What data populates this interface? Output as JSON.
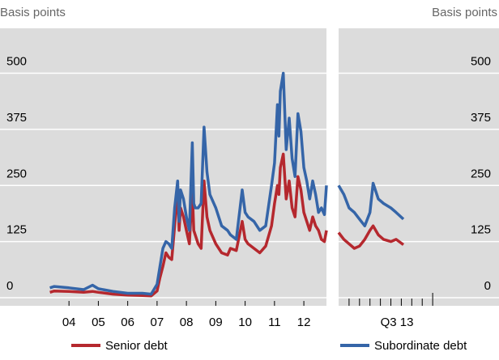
{
  "chart_data": [
    {
      "type": "line",
      "ylabel": "Basis points",
      "x": [
        3.85,
        4.0,
        4.5,
        5.0,
        5.3,
        5.5,
        6.0,
        6.5,
        7.0,
        7.3,
        7.5,
        7.6,
        7.7,
        7.8,
        7.9,
        8.0,
        8.1,
        8.2,
        8.25,
        8.3,
        8.4,
        8.5,
        8.6,
        8.7,
        8.75,
        8.8,
        8.9,
        9.0,
        9.1,
        9.2,
        9.3,
        9.5,
        9.7,
        9.9,
        10.0,
        10.2,
        10.4,
        10.5,
        10.6,
        10.8,
        11.0,
        11.2,
        11.4,
        11.5,
        11.6,
        11.65,
        11.7,
        11.8,
        11.9,
        12.0,
        12.1,
        12.2,
        12.3,
        12.4,
        12.5,
        12.6,
        12.7,
        12.8,
        12.9,
        13.0,
        13.1,
        13.2,
        13.27
      ],
      "series": [
        {
          "name": "Senior debt",
          "color": "#b5282e",
          "values": [
            12,
            15,
            14,
            12,
            14,
            12,
            8,
            6,
            5,
            4,
            15,
            45,
            70,
            100,
            90,
            85,
            160,
            240,
            150,
            200,
            180,
            150,
            120,
            240,
            150,
            140,
            120,
            110,
            260,
            180,
            150,
            120,
            100,
            95,
            110,
            105,
            170,
            130,
            120,
            110,
            100,
            115,
            160,
            210,
            250,
            230,
            290,
            320,
            220,
            260,
            200,
            180,
            270,
            240,
            190,
            170,
            150,
            180,
            160,
            150,
            130,
            125,
            150
          ]
        },
        {
          "name": "Subordinate debt",
          "color": "#3565a8",
          "values": [
            22,
            25,
            22,
            18,
            28,
            20,
            14,
            10,
            10,
            8,
            30,
            70,
            110,
            125,
            120,
            110,
            200,
            260,
            170,
            240,
            220,
            180,
            150,
            345,
            210,
            200,
            200,
            210,
            380,
            280,
            230,
            200,
            160,
            150,
            140,
            130,
            240,
            190,
            180,
            170,
            150,
            160,
            250,
            300,
            430,
            360,
            460,
            500,
            330,
            400,
            310,
            270,
            410,
            370,
            290,
            260,
            220,
            260,
            230,
            190,
            200,
            185,
            250
          ]
        }
      ],
      "xlim": [
        2.15,
        13.27
      ],
      "ylim": [
        -18,
        600
      ],
      "xticks": [
        {
          "value": 4.5,
          "label": "04"
        },
        {
          "value": 5.5,
          "label": "05"
        },
        {
          "value": 6.5,
          "label": "06"
        },
        {
          "value": 7.5,
          "label": "07"
        },
        {
          "value": 8.5,
          "label": "08"
        },
        {
          "value": 9.5,
          "label": "09"
        },
        {
          "value": 10.5,
          "label": "10"
        },
        {
          "value": 11.5,
          "label": "11"
        },
        {
          "value": 12.5,
          "label": "12"
        }
      ],
      "yticks": [
        0,
        125,
        250,
        375,
        500
      ],
      "grid": true
    },
    {
      "type": "line",
      "ylabel": "Basis points",
      "xlabel": "Q3 13",
      "x": [
        0,
        0.5,
        1,
        1.5,
        2,
        2.5,
        3,
        3.3,
        3.8,
        4.3,
        5,
        5.5,
        6.2
      ],
      "series": [
        {
          "color": "#b5282e",
          "values": [
            145,
            130,
            120,
            110,
            115,
            130,
            150,
            160,
            140,
            130,
            125,
            130,
            118
          ]
        },
        {
          "color": "#3565a8",
          "values": [
            250,
            230,
            200,
            190,
            175,
            160,
            190,
            255,
            220,
            210,
            200,
            190,
            175
          ]
        }
      ],
      "xlim": [
        0,
        12.4
      ],
      "ylim": [
        -18,
        600
      ],
      "xticks": [
        1,
        2,
        3,
        4,
        5,
        6,
        7,
        8,
        9
      ],
      "yticks": [
        0,
        125,
        250,
        375,
        500
      ],
      "grid": true
    }
  ]
}
